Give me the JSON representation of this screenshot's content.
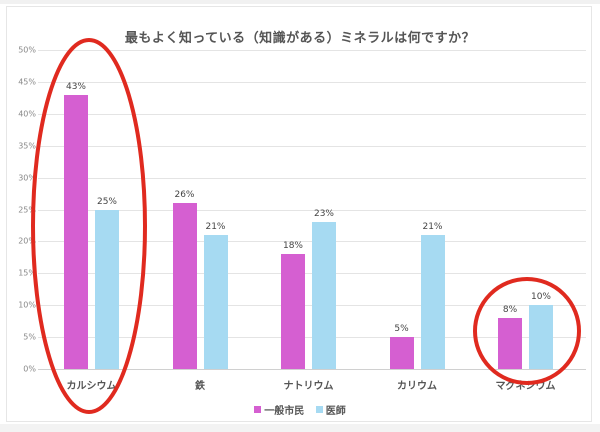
{
  "chart_data": {
    "type": "bar",
    "title": "最もよく知っている（知識がある）ミネラルは何ですか？",
    "categories": [
      "カルシウム",
      "鉄",
      "ナトリウム",
      "カリウム",
      "マグネシウム"
    ],
    "series": [
      {
        "name": "一般市民",
        "color": "#d55fd1",
        "values": [
          43,
          26,
          18,
          5,
          8
        ],
        "labels": [
          "43%",
          "26%",
          "18%",
          "5%",
          "8%"
        ]
      },
      {
        "name": "医師",
        "color": "#a6daf2",
        "values": [
          25,
          21,
          23,
          21,
          10
        ],
        "labels": [
          "25%",
          "21%",
          "23%",
          "21%",
          "10%"
        ]
      }
    ],
    "xlabel": "",
    "ylabel": "",
    "ylim": [
      0,
      50
    ],
    "yticks": [
      "0%",
      "5%",
      "10%",
      "15%",
      "20%",
      "25%",
      "30%",
      "35%",
      "40%",
      "45%",
      "50%"
    ],
    "grid": true,
    "legend_position": "bottom",
    "annotations": [
      {
        "type": "ellipse",
        "color": "#e02a1f",
        "target": "カルシウム"
      },
      {
        "type": "ellipse",
        "color": "#e02a1f",
        "target": "マグネシウム"
      }
    ]
  }
}
